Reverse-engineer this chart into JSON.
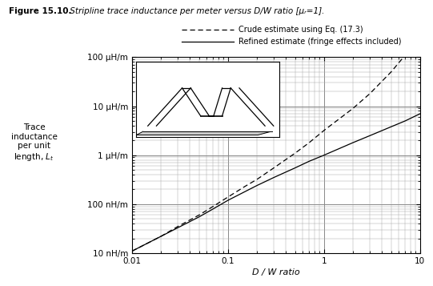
{
  "title_bold": "Figure 15.10.",
  "title_italic": " Stripline trace inductance per meter versus D/W ratio [μᵣ=1].",
  "xlabel": "D / W ratio",
  "ylabel_lines": [
    "Trace",
    "inductance",
    "per unit",
    "length, Lₗ"
  ],
  "ytick_labels": [
    "10 nH/m",
    "100 nH/m",
    "1 μH/m",
    "10 μH/m",
    "100 μH/m"
  ],
  "ytick_values": [
    1e-08,
    1e-07,
    1e-06,
    1e-05,
    0.0001
  ],
  "legend_crude": "Crude estimate using Eq. (17.3)",
  "legend_refined": "Refined estimate (fringe effects included)",
  "line_color": "#000000",
  "grid_major_color": "#888888",
  "grid_minor_color": "#aaaaaa",
  "crude_x": [
    0.01,
    0.02,
    0.03,
    0.05,
    0.07,
    0.1,
    0.15,
    0.2,
    0.3,
    0.5,
    0.7,
    1.0,
    2.0,
    3.0,
    5.0,
    7.0,
    10.0
  ],
  "crude_y": [
    1.1e-08,
    2.2e-08,
    3.5e-08,
    6e-08,
    9e-08,
    1.4e-07,
    2.3e-07,
    3.2e-07,
    5.5e-07,
    1.1e-06,
    1.8e-06,
    3.2e-06,
    9e-06,
    1.8e-05,
    5e-05,
    0.00011,
    0.0003
  ],
  "refined_x": [
    0.01,
    0.02,
    0.03,
    0.05,
    0.07,
    0.1,
    0.15,
    0.2,
    0.3,
    0.5,
    0.7,
    1.0,
    2.0,
    3.0,
    5.0,
    7.0,
    10.0
  ],
  "refined_y": [
    1.1e-08,
    2.2e-08,
    3.3e-08,
    5.5e-08,
    8e-08,
    1.2e-07,
    1.8e-07,
    2.4e-07,
    3.5e-07,
    5.5e-07,
    7.5e-07,
    1e-06,
    1.8e-06,
    2.5e-06,
    3.8e-06,
    5e-06,
    7e-06
  ]
}
